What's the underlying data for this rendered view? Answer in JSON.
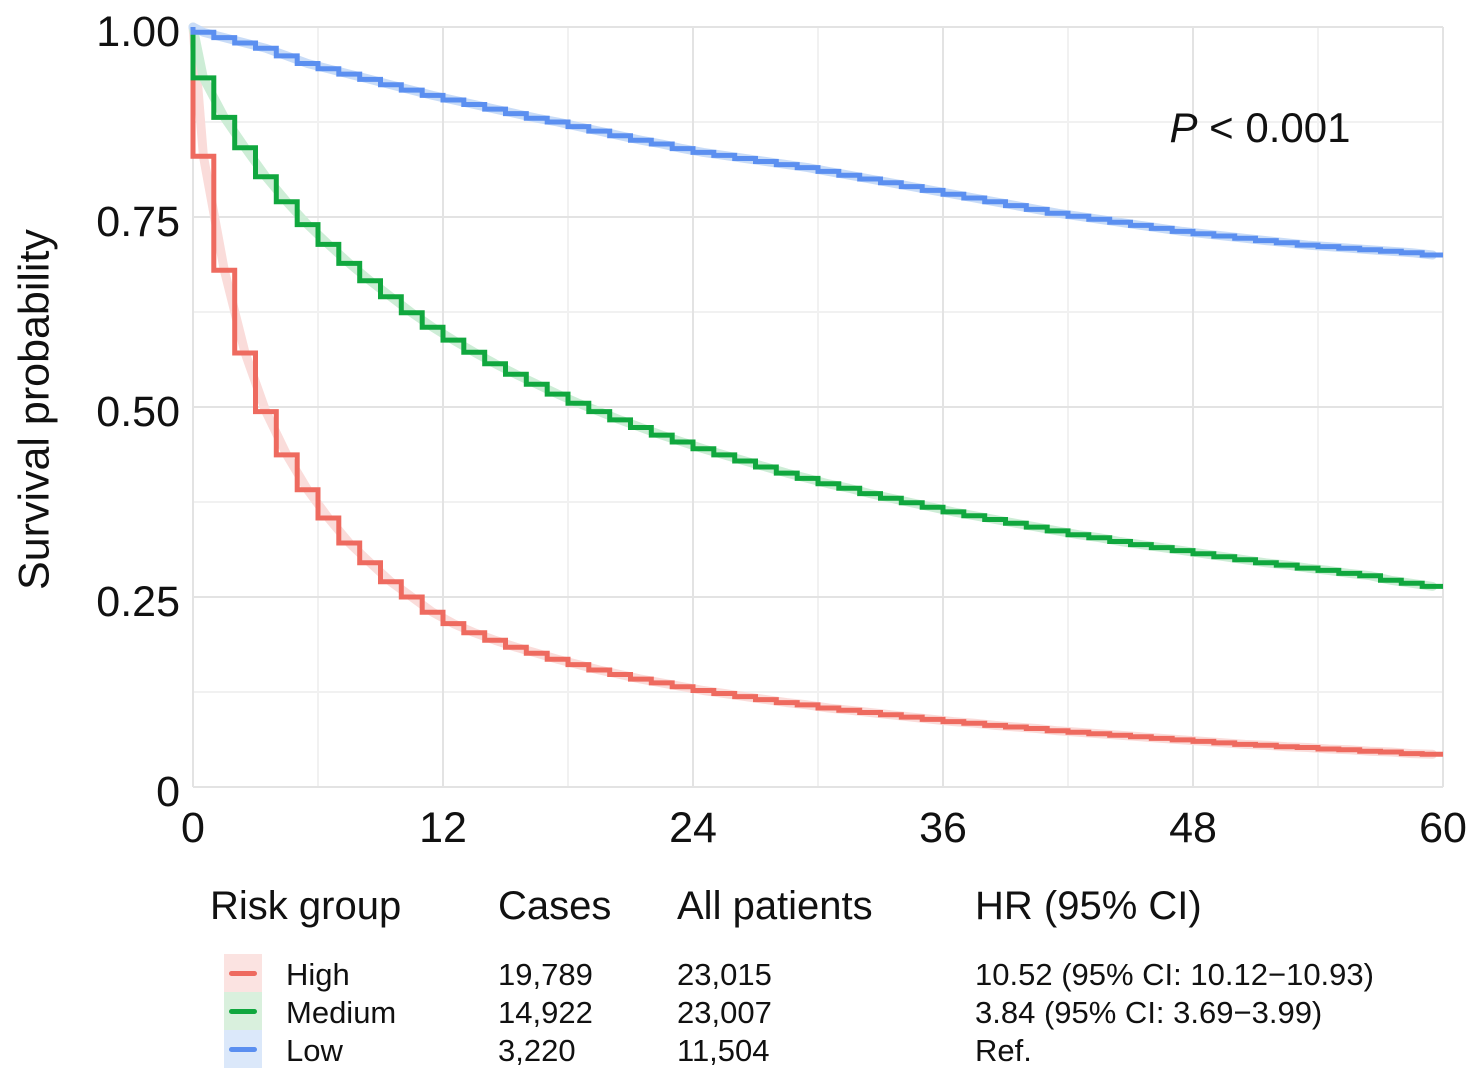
{
  "chart_data": {
    "type": "line",
    "subtype": "kaplan-meier-step",
    "title": "",
    "xlabel": "",
    "ylabel": "Survival probability",
    "xlim": [
      0,
      60
    ],
    "ylim": [
      0,
      1
    ],
    "x_major_ticks": [
      0,
      12,
      24,
      36,
      48,
      60
    ],
    "x_minor_ticks": [
      6,
      18,
      30,
      42,
      54
    ],
    "y_major_ticks": [
      1.0,
      0.75,
      0.5,
      0.25,
      0
    ],
    "y_major_tick_labels": [
      "1.00",
      "0.75",
      "0.50",
      "0.25",
      "0"
    ],
    "y_minor_ticks": [
      0.875,
      0.625,
      0.375,
      0.125
    ],
    "grid": "on",
    "grid_major_color": "#e3e3e3",
    "grid_minor_color": "#f1f1f1",
    "legend_position": "bottom-table",
    "annotation": {
      "pvar": "P",
      "rest": " < 0.001"
    },
    "series": [
      {
        "name": "High",
        "color": "#ee6a5f",
        "ribbon_color": "#fadcda",
        "swatch_bg": "#fbe3e1",
        "x": [
          0,
          1,
          2,
          3,
          4,
          5,
          6,
          7,
          8,
          9,
          10,
          11,
          12,
          13,
          14,
          15,
          16,
          17,
          18,
          19,
          20,
          21,
          22,
          23,
          24,
          25,
          26,
          27,
          28,
          29,
          30,
          31,
          32,
          33,
          34,
          35,
          36,
          37,
          38,
          39,
          40,
          41,
          42,
          43,
          44,
          45,
          46,
          47,
          48,
          49,
          50,
          51,
          52,
          53,
          54,
          55,
          56,
          57,
          58,
          59,
          60
        ],
        "y": [
          1.0,
          0.83,
          0.68,
          0.571,
          0.494,
          0.437,
          0.391,
          0.354,
          0.321,
          0.295,
          0.27,
          0.25,
          0.23,
          0.215,
          0.203,
          0.193,
          0.184,
          0.176,
          0.168,
          0.161,
          0.154,
          0.148,
          0.142,
          0.137,
          0.132,
          0.127,
          0.123,
          0.119,
          0.115,
          0.111,
          0.108,
          0.104,
          0.101,
          0.098,
          0.095,
          0.092,
          0.089,
          0.086,
          0.084,
          0.081,
          0.079,
          0.077,
          0.074,
          0.072,
          0.07,
          0.068,
          0.066,
          0.064,
          0.062,
          0.06,
          0.058,
          0.056,
          0.055,
          0.053,
          0.052,
          0.05,
          0.049,
          0.047,
          0.046,
          0.044,
          0.043
        ]
      },
      {
        "name": "Medium",
        "color": "#10a73e",
        "ribbon_color": "#cdedd6",
        "swatch_bg": "#d9f0dd",
        "x": [
          0,
          1,
          2,
          3,
          4,
          5,
          6,
          7,
          8,
          9,
          10,
          11,
          12,
          13,
          14,
          15,
          16,
          17,
          18,
          19,
          20,
          21,
          22,
          23,
          24,
          25,
          26,
          27,
          28,
          29,
          30,
          31,
          32,
          33,
          34,
          35,
          36,
          37,
          38,
          39,
          40,
          41,
          42,
          43,
          44,
          45,
          46,
          47,
          48,
          49,
          50,
          51,
          52,
          53,
          54,
          55,
          56,
          57,
          58,
          59,
          60
        ],
        "y": [
          1.0,
          0.933,
          0.881,
          0.841,
          0.803,
          0.77,
          0.74,
          0.714,
          0.689,
          0.666,
          0.645,
          0.624,
          0.605,
          0.588,
          0.572,
          0.557,
          0.543,
          0.53,
          0.517,
          0.505,
          0.494,
          0.483,
          0.473,
          0.463,
          0.454,
          0.445,
          0.437,
          0.429,
          0.421,
          0.413,
          0.406,
          0.399,
          0.393,
          0.386,
          0.38,
          0.374,
          0.368,
          0.362,
          0.357,
          0.352,
          0.347,
          0.342,
          0.337,
          0.332,
          0.328,
          0.323,
          0.319,
          0.315,
          0.311,
          0.307,
          0.303,
          0.299,
          0.295,
          0.292,
          0.288,
          0.285,
          0.281,
          0.278,
          0.272,
          0.268,
          0.264
        ]
      },
      {
        "name": "Low",
        "color": "#5b8ff0",
        "ribbon_color": "#c9dcf7",
        "swatch_bg": "#dbe8fa",
        "x": [
          0,
          1,
          2,
          3,
          4,
          5,
          6,
          7,
          8,
          9,
          10,
          11,
          12,
          13,
          14,
          15,
          16,
          17,
          18,
          19,
          20,
          21,
          22,
          23,
          24,
          25,
          26,
          27,
          28,
          29,
          30,
          31,
          32,
          33,
          34,
          35,
          36,
          37,
          38,
          39,
          40,
          41,
          42,
          43,
          44,
          45,
          46,
          47,
          48,
          49,
          50,
          51,
          52,
          53,
          54,
          55,
          56,
          57,
          58,
          59,
          60
        ],
        "y": [
          1.0,
          0.993,
          0.986,
          0.979,
          0.972,
          0.962,
          0.952,
          0.945,
          0.938,
          0.931,
          0.924,
          0.917,
          0.91,
          0.904,
          0.898,
          0.892,
          0.886,
          0.88,
          0.875,
          0.869,
          0.863,
          0.857,
          0.851,
          0.846,
          0.84,
          0.835,
          0.831,
          0.827,
          0.823,
          0.819,
          0.815,
          0.81,
          0.805,
          0.8,
          0.795,
          0.79,
          0.785,
          0.78,
          0.775,
          0.77,
          0.765,
          0.76,
          0.755,
          0.751,
          0.747,
          0.743,
          0.739,
          0.735,
          0.731,
          0.728,
          0.725,
          0.722,
          0.719,
          0.716,
          0.713,
          0.711,
          0.709,
          0.707,
          0.705,
          0.703,
          0.7
        ]
      }
    ],
    "legend_table": {
      "headers": [
        "Risk group",
        "Cases",
        "All patients",
        "HR (95% CI)"
      ],
      "rows": [
        {
          "group": "High",
          "cases": "19,789",
          "all_patients": "23,015",
          "hr": "10.52 (95% CI: 10.12−10.93)"
        },
        {
          "group": "Medium",
          "cases": "14,922",
          "all_patients": "23,007",
          "hr": "3.84 (95% CI: 3.69−3.99)"
        },
        {
          "group": "Low",
          "cases": "3,220",
          "all_patients": "11,504",
          "hr": "Ref."
        }
      ]
    }
  }
}
